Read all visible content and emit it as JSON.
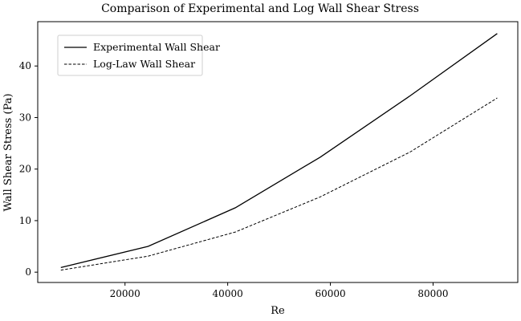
{
  "chart_data": {
    "type": "line",
    "title": "Comparison of Experimental and Log Wall Shear Stress",
    "xlabel": "Re",
    "ylabel": "Wall Shear Stress (Pa)",
    "xlim": [
      3000,
      96500
    ],
    "ylim": [
      -2.0,
      48.6
    ],
    "xticks": [
      20000,
      40000,
      60000,
      80000
    ],
    "yticks": [
      0,
      10,
      20,
      30,
      40
    ],
    "grid": false,
    "legend_position": "top-left",
    "series": [
      {
        "name": "Experimental Wall Shear",
        "style": "solid",
        "color": "#000000",
        "x": [
          7500,
          24500,
          41500,
          58000,
          75500,
          92500
        ],
        "y": [
          0.9,
          5.0,
          12.5,
          22.3,
          34.2,
          46.3
        ]
      },
      {
        "name": "Log-Law Wall Shear",
        "style": "dashed",
        "color": "#000000",
        "x": [
          7500,
          24500,
          41500,
          58000,
          75500,
          92500
        ],
        "y": [
          0.4,
          3.1,
          7.8,
          14.6,
          23.3,
          33.8
        ]
      }
    ]
  }
}
